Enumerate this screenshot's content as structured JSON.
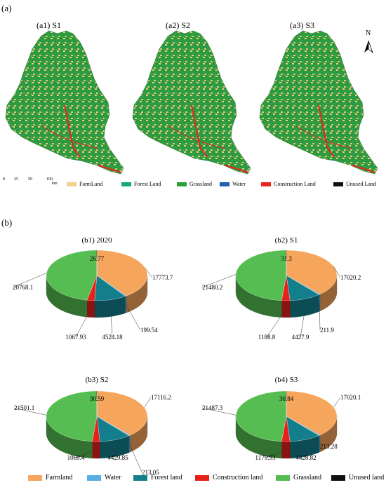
{
  "panel_a": {
    "letter": "(a)",
    "maps": [
      {
        "title": "(a1) S1"
      },
      {
        "title": "(a2)  S2"
      },
      {
        "title": "(a3) S3"
      }
    ],
    "north_label": "N",
    "scale": {
      "ticks": [
        "0",
        "25",
        "50",
        "100"
      ],
      "unit": "km"
    },
    "legend": [
      {
        "label": "FarmLand",
        "color": "#f2cf8e"
      },
      {
        "label": "Forest Land",
        "color": "#18a877"
      },
      {
        "label": "Grassland",
        "color": "#2aa23a"
      },
      {
        "label": "Water",
        "color": "#1f5fb4"
      },
      {
        "label": "Construction Land",
        "color": "#e8251d"
      },
      {
        "label": "Unused Land",
        "color": "#111111"
      }
    ]
  },
  "panel_b": {
    "letter": "(b)",
    "legend": [
      {
        "label": "Farmland",
        "color": "#f5a55c"
      },
      {
        "label": "Water",
        "color": "#56aee3"
      },
      {
        "label": "Forest land",
        "color": "#147f8c"
      },
      {
        "label": "Construction land",
        "color": "#e8201c"
      },
      {
        "label": "Grassland",
        "color": "#55bd52"
      },
      {
        "label": "Unused land",
        "color": "#111111"
      }
    ]
  },
  "chart_data": [
    {
      "type": "pie",
      "title": "(b1) 2020",
      "categories": [
        "Farmland",
        "Water",
        "Forest land",
        "Construction land",
        "Grassland",
        "Unused land"
      ],
      "values": [
        17773.7,
        199.54,
        4524.18,
        1067.93,
        20768.1,
        26.77
      ],
      "labels": [
        "17773.7",
        "199.54",
        "4524.18",
        "1067.93",
        "20768.1",
        "26.77"
      ]
    },
    {
      "type": "pie",
      "title": "(b2) S1",
      "categories": [
        "Farmland",
        "Water",
        "Forest land",
        "Construction land",
        "Grassland",
        "Unused land"
      ],
      "values": [
        17020.2,
        211.9,
        4427.9,
        1188.8,
        21480.2,
        31.3
      ],
      "labels": [
        "17020.2",
        "211.9",
        "4427.9",
        "1188.8",
        "21480.2",
        "31.3"
      ]
    },
    {
      "type": "pie",
      "title": "(b3) S2",
      "categories": [
        "Farmland",
        "Water",
        "Forest land",
        "Construction land",
        "Grassland",
        "Unused land"
      ],
      "values": [
        17116.2,
        213.05,
        4429.85,
        1069.4,
        21501.1,
        30.59
      ],
      "labels": [
        "17116.2",
        "213.05",
        "4429.85",
        "1069.4",
        "21501.1",
        "30.59"
      ]
    },
    {
      "type": "pie",
      "title": "(b4) S3",
      "categories": [
        "Farmland",
        "Water",
        "Forest land",
        "Construction land",
        "Grassland",
        "Unused land"
      ],
      "values": [
        17020.1,
        213.28,
        4428.82,
        1179.93,
        21487.3,
        30.84
      ],
      "labels": [
        "17020.1",
        "213.28",
        "4428.82",
        "1179.93",
        "21487.3",
        "30.84"
      ]
    }
  ]
}
